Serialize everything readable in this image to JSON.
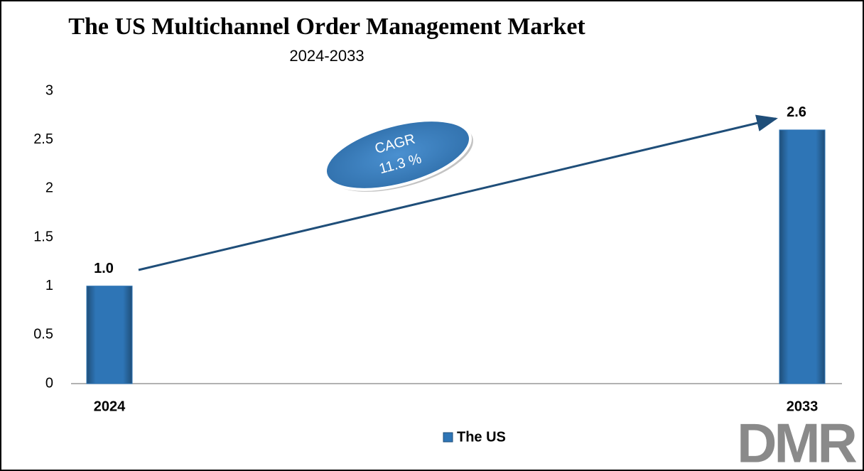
{
  "chart_data": {
    "type": "bar",
    "title": "The US  Multichannel Order Management Market",
    "subtitle": "2024-2033",
    "categories": [
      "2024",
      "2033"
    ],
    "series": [
      {
        "name": "The US",
        "color": "#2e75b6",
        "values": [
          1.0,
          2.6
        ],
        "value_labels": [
          "1.0",
          "2.6"
        ]
      }
    ],
    "ylim": [
      0,
      3
    ],
    "yticks": [
      0,
      0.5,
      1,
      1.5,
      2,
      2.5,
      3
    ],
    "grid": false,
    "legend": "bottom",
    "annotation": {
      "label": "CAGR",
      "value": "11.3 %"
    },
    "logo": "DMR"
  }
}
